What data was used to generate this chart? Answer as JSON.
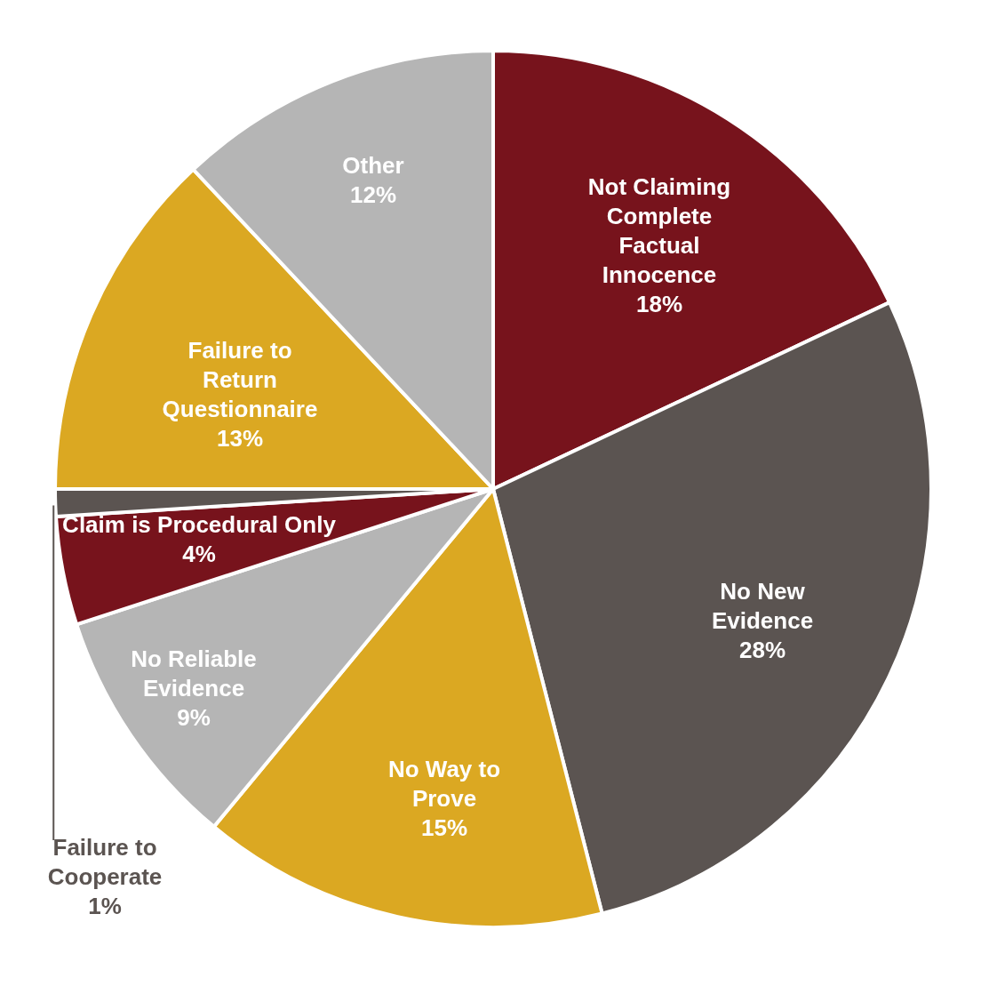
{
  "chart_data": {
    "type": "pie",
    "categories": [
      "Not Claiming Complete Factual Innocence",
      "No New Evidence",
      "No Way to Prove",
      "No Reliable Evidence",
      "Claim is Procedural Only",
      "Failure to Cooperate",
      "Failure to Return Questionnaire",
      "Other"
    ],
    "values": [
      18,
      28,
      15,
      9,
      4,
      1,
      13,
      12
    ],
    "value_labels": [
      "18%",
      "28%",
      "15%",
      "9%",
      "4%",
      "1%",
      "13%",
      "12%"
    ],
    "colors": [
      "#77131c",
      "#5b5451",
      "#dba822",
      "#b5b5b5",
      "#77131c",
      "#5b5451",
      "#dba822",
      "#b5b5b5"
    ],
    "legend": false
  }
}
